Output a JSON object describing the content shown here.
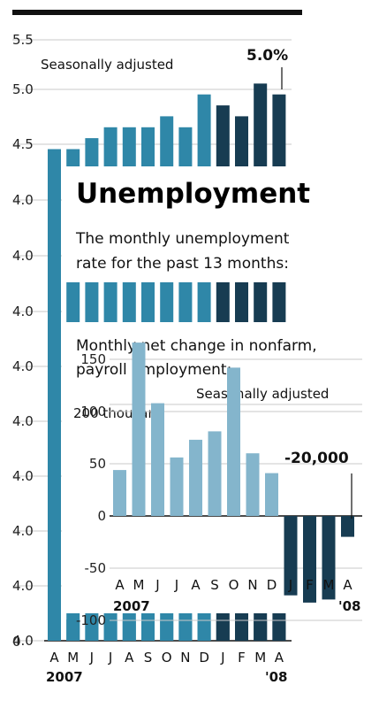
{
  "chart_data": [
    {
      "type": "bar",
      "title": "Unemployment",
      "subtitle": "The monthly unemployment rate for the past 13 months:",
      "note": "Seasonally adjusted",
      "callout": "5.0%",
      "categories": [
        "A",
        "M",
        "J",
        "J",
        "A",
        "S",
        "O",
        "N",
        "D",
        "J",
        "F",
        "M",
        "A"
      ],
      "year_labels": [
        "2007",
        "'08"
      ],
      "y_ticks": [
        "5.5",
        "5.0",
        "4.5",
        "4.0",
        "4.0",
        "4.0",
        "4.0",
        "4.0",
        "4.0",
        "4.0",
        "4.0",
        "4.0",
        "0"
      ],
      "ylim": [
        0,
        5.5
      ],
      "values": [
        4.5,
        4.5,
        4.6,
        4.7,
        4.7,
        4.7,
        4.8,
        4.7,
        5.0,
        4.9,
        4.8,
        5.1,
        5.0
      ],
      "colors": {
        "2007": "#2f87a8",
        "2008": "#173c52"
      }
    },
    {
      "type": "bar",
      "subtitle": "Monthly net change in nonfarm, payroll employment:",
      "note": "Seasonally adjusted",
      "unit_label": "200 thousand",
      "callout": "-20,000",
      "categories": [
        "A",
        "M",
        "J",
        "J",
        "A",
        "S",
        "O",
        "N",
        "D",
        "J",
        "F",
        "M",
        "A"
      ],
      "year_labels": [
        "2007",
        "'08"
      ],
      "y_ticks": [
        "150",
        "100",
        "50",
        "0",
        "-50",
        "-100"
      ],
      "ylim": [
        -100,
        200
      ],
      "values": [
        44,
        166,
        108,
        56,
        73,
        81,
        142,
        60,
        41,
        -76,
        -83,
        -80,
        -20
      ],
      "colors": {
        "2007": "#84b5cc",
        "2008": "#173c52"
      }
    }
  ]
}
